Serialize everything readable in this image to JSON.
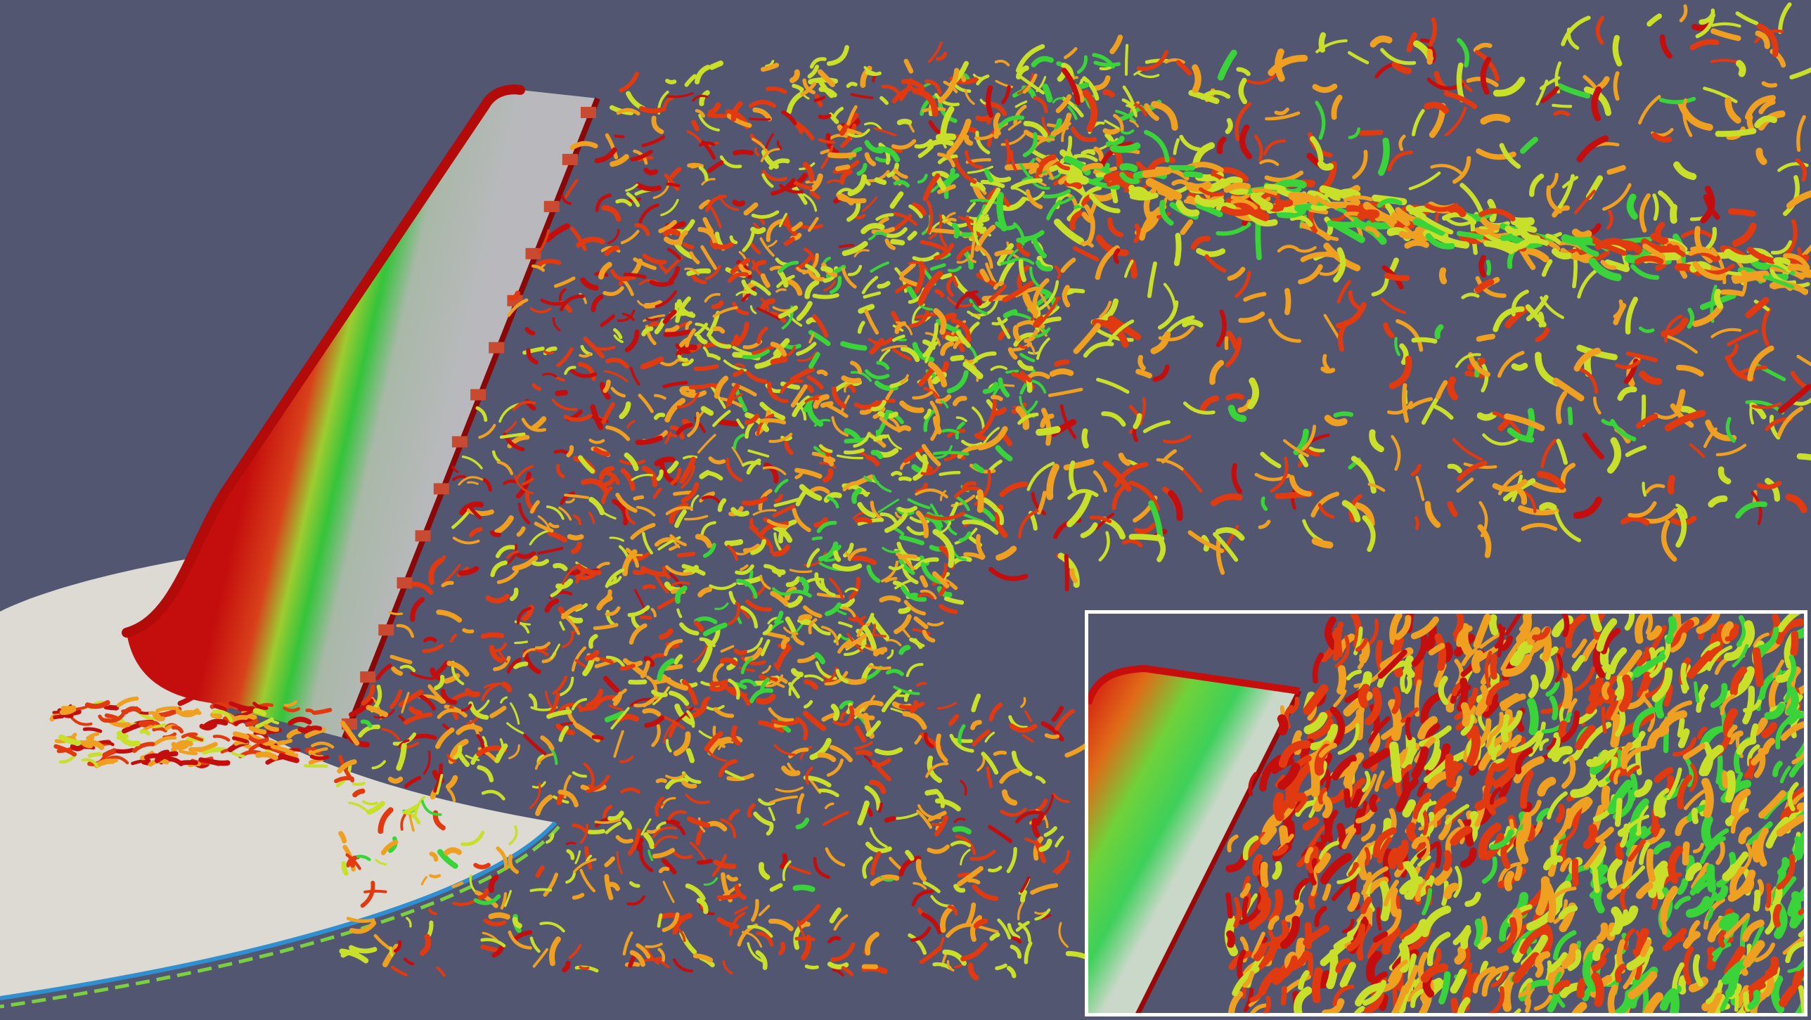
{
  "image": {
    "kind": "cfd-vortex-isosurface-render",
    "background_color": "#525671",
    "colormap": [
      "#1a4fd6",
      "#19c4d8",
      "#3ad43a",
      "#c8e02a",
      "#f0a020",
      "#e23a10",
      "#c40d0d"
    ],
    "body_color": "#dcdad2",
    "wing_surface_color": "#b9b9bd",
    "inset_border_color": "#ffffff"
  }
}
